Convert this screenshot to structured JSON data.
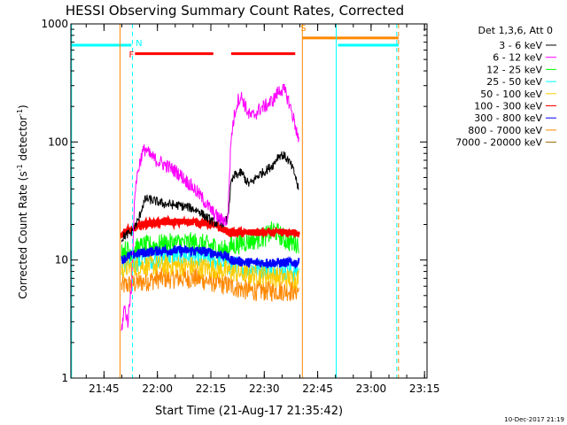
{
  "chart_data": {
    "type": "line",
    "title": "HESSI Observing Summary Count Rates, Corrected",
    "xlabel": "Start Time (21-Aug-17 21:35:42)",
    "ylabel_main": "Corrected Count Rate (s",
    "ylabel_sup1": "-1",
    "ylabel_mid": " detector",
    "ylabel_sup2": "-1",
    "ylabel_end": ")",
    "yscale": "log",
    "xlim_minutes": [
      0,
      100
    ],
    "ylim": [
      1,
      1000
    ],
    "x_ticks": [
      {
        "label": "21:45",
        "minute": 9.3
      },
      {
        "label": "22:00",
        "minute": 24.3
      },
      {
        "label": "22:15",
        "minute": 39.3
      },
      {
        "label": "22:30",
        "minute": 54.3
      },
      {
        "label": "22:45",
        "minute": 69.3
      },
      {
        "label": "23:00",
        "minute": 84.3
      },
      {
        "label": "23:15",
        "minute": 99.3
      }
    ],
    "y_ticks": [
      {
        "label": "1",
        "value": 1
      },
      {
        "label": "10",
        "value": 10
      },
      {
        "label": "100",
        "value": 100
      },
      {
        "label": "1000",
        "value": 1000
      }
    ],
    "legend_title": "Det 1,3,6, Att 0",
    "legend_position": "right-outside",
    "series": [
      {
        "name": "3 - 6 keV",
        "color": "#000000",
        "noise": 0.04,
        "points": [
          [
            14.2,
            15
          ],
          [
            15,
            16
          ],
          [
            17,
            17
          ],
          [
            19,
            22
          ],
          [
            20,
            28
          ],
          [
            21,
            33
          ],
          [
            23,
            32
          ],
          [
            26,
            30
          ],
          [
            30,
            29
          ],
          [
            33,
            28
          ],
          [
            36,
            26
          ],
          [
            38,
            23
          ],
          [
            40,
            21
          ],
          [
            42,
            20
          ],
          [
            43,
            21
          ],
          [
            44,
            22
          ],
          [
            45,
            45
          ],
          [
            46,
            52
          ],
          [
            48,
            55
          ],
          [
            49,
            48
          ],
          [
            50,
            44
          ],
          [
            51,
            46
          ],
          [
            52,
            50
          ],
          [
            53,
            53
          ],
          [
            55,
            58
          ],
          [
            57,
            65
          ],
          [
            58,
            75
          ],
          [
            59,
            78
          ],
          [
            60,
            76
          ],
          [
            61,
            70
          ],
          [
            62,
            62
          ],
          [
            63,
            52
          ],
          [
            64,
            38
          ]
        ]
      },
      {
        "name": "6 - 12 keV",
        "color": "#ff00ff",
        "noise": 0.06,
        "points": [
          [
            14.2,
            2.5
          ],
          [
            15,
            4
          ],
          [
            16,
            3
          ],
          [
            17,
            6
          ],
          [
            18,
            40
          ],
          [
            19,
            60
          ],
          [
            20,
            80
          ],
          [
            21,
            88
          ],
          [
            22,
            78
          ],
          [
            24,
            70
          ],
          [
            26,
            65
          ],
          [
            28,
            60
          ],
          [
            30,
            55
          ],
          [
            32,
            48
          ],
          [
            34,
            42
          ],
          [
            36,
            36
          ],
          [
            38,
            30
          ],
          [
            40,
            25
          ],
          [
            42,
            22
          ],
          [
            43,
            22
          ],
          [
            44,
            21
          ],
          [
            45,
            110
          ],
          [
            46,
            175
          ],
          [
            47,
            230
          ],
          [
            48,
            240
          ],
          [
            49,
            200
          ],
          [
            50,
            170
          ],
          [
            51,
            165
          ],
          [
            52,
            175
          ],
          [
            53,
            190
          ],
          [
            55,
            205
          ],
          [
            57,
            230
          ],
          [
            58,
            260
          ],
          [
            59,
            280
          ],
          [
            60,
            270
          ],
          [
            61,
            230
          ],
          [
            62,
            180
          ],
          [
            63,
            140
          ],
          [
            64,
            100
          ]
        ]
      },
      {
        "name": "12 - 25 keV",
        "color": "#00ff00",
        "noise": 0.09,
        "points": [
          [
            14.2,
            12
          ],
          [
            17,
            12
          ],
          [
            20,
            13
          ],
          [
            25,
            13.5
          ],
          [
            30,
            14
          ],
          [
            35,
            14
          ],
          [
            40,
            13
          ],
          [
            43,
            12
          ],
          [
            45,
            13
          ],
          [
            48,
            14
          ],
          [
            52,
            15
          ],
          [
            55,
            16
          ],
          [
            57,
            18
          ],
          [
            58,
            17
          ],
          [
            60,
            15
          ],
          [
            62,
            14
          ],
          [
            64,
            14
          ]
        ]
      },
      {
        "name": "25 - 50 keV",
        "color": "#00ffff",
        "noise": 0.09,
        "points": [
          [
            14.2,
            9
          ],
          [
            20,
            10
          ],
          [
            30,
            11
          ],
          [
            40,
            10
          ],
          [
            45,
            9
          ],
          [
            50,
            8.5
          ],
          [
            55,
            8.5
          ],
          [
            60,
            8
          ],
          [
            64,
            8
          ]
        ]
      },
      {
        "name": "50 - 100 keV",
        "color": "#ffcc00",
        "noise": 0.09,
        "points": [
          [
            14.2,
            8.5
          ],
          [
            20,
            9
          ],
          [
            30,
            9
          ],
          [
            40,
            8.5
          ],
          [
            45,
            8
          ],
          [
            50,
            7.5
          ],
          [
            55,
            7.5
          ],
          [
            60,
            7
          ],
          [
            64,
            7
          ]
        ]
      },
      {
        "name": "100 - 300 keV",
        "color": "#ff0000",
        "noise": 0.03,
        "points": [
          [
            14.2,
            17
          ],
          [
            17,
            18
          ],
          [
            20,
            20
          ],
          [
            25,
            21
          ],
          [
            30,
            21
          ],
          [
            35,
            21
          ],
          [
            40,
            20
          ],
          [
            43,
            18
          ],
          [
            45,
            17
          ],
          [
            50,
            17
          ],
          [
            55,
            17
          ],
          [
            60,
            17
          ],
          [
            64,
            17
          ]
        ]
      },
      {
        "name": "300 - 800 keV",
        "color": "#0000ff",
        "noise": 0.04,
        "points": [
          [
            14.2,
            10
          ],
          [
            17,
            11
          ],
          [
            20,
            11.5
          ],
          [
            25,
            12
          ],
          [
            30,
            12
          ],
          [
            35,
            12
          ],
          [
            40,
            11.5
          ],
          [
            43,
            11
          ],
          [
            45,
            10
          ],
          [
            50,
            9.5
          ],
          [
            55,
            9.5
          ],
          [
            60,
            9.5
          ],
          [
            64,
            9.5
          ]
        ]
      },
      {
        "name": "800 - 7000 keV",
        "color": "#ff8800",
        "noise": 0.09,
        "points": [
          [
            14.2,
            6
          ],
          [
            20,
            6.5
          ],
          [
            25,
            7
          ],
          [
            30,
            7
          ],
          [
            35,
            7
          ],
          [
            40,
            6.5
          ],
          [
            45,
            6
          ],
          [
            50,
            5.5
          ],
          [
            55,
            5.5
          ],
          [
            60,
            5.5
          ],
          [
            64,
            5.5
          ]
        ]
      },
      {
        "name": "7000 - 20000 keV",
        "color": "#996600",
        "noise": 0.0,
        "points": []
      }
    ],
    "flags": [
      {
        "label": "N",
        "color": "#00ffff",
        "label_minute": 18.2,
        "label_value": 650,
        "segments": [
          [
            0,
            17
          ]
        ],
        "segment_value": 660,
        "lines": [
          {
            "minute": 17.3,
            "dashed": true
          }
        ]
      },
      {
        "label": "F",
        "color": "#ff0000",
        "label_minute": 16.3,
        "label_value": 520,
        "segments": [
          [
            18,
            40
          ],
          [
            45,
            63
          ]
        ],
        "segment_value": 560,
        "lines": []
      },
      {
        "label": "S",
        "color": "#ff8800",
        "label_minute": 64.5,
        "label_value": 870,
        "segments": [
          [
            65,
            92
          ]
        ],
        "segment_value": 760,
        "lines": [
          {
            "minute": 65,
            "dashed": false
          },
          {
            "minute": 92,
            "dashed": true
          }
        ]
      },
      {
        "label": "",
        "color": "#00ffff",
        "label_minute": 0,
        "label_value": 0,
        "segments": [
          [
            75,
            92
          ]
        ],
        "segment_value": 660,
        "lines": [
          {
            "minute": 0.2,
            "dashed": false
          },
          {
            "minute": 74.5,
            "dashed": false
          },
          {
            "minute": 91.5,
            "dashed": true
          }
        ]
      }
    ],
    "extra_lines": [
      {
        "minute": 13.8,
        "color": "#ff8800"
      }
    ],
    "grid": false
  },
  "footer": {
    "date_stamp": "10-Dec-2017 21:19"
  }
}
